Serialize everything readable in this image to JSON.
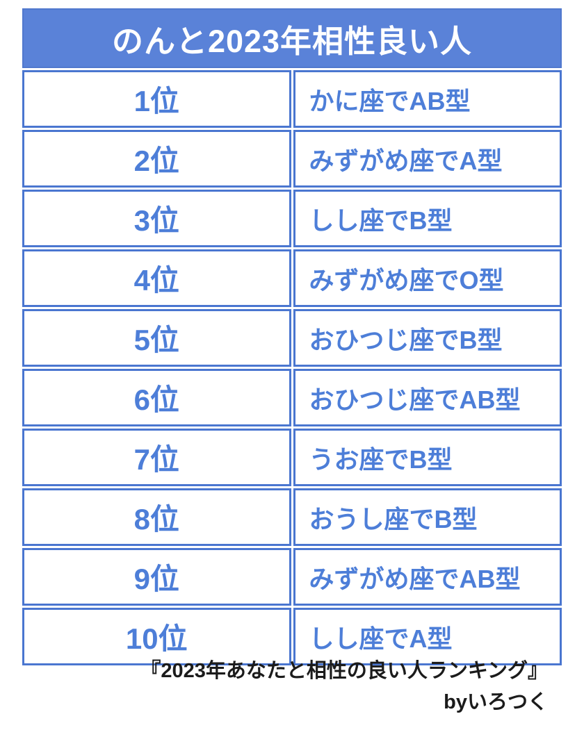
{
  "colors": {
    "header_bg": "#5a82d8",
    "cell_border": "#4a76d0",
    "text_blue": "#4d7ed8",
    "header_text": "#ffffff",
    "footer_text": "#1b1b1b",
    "page_bg": "#ffffff"
  },
  "header": {
    "title": "のんと2023年相性良い人"
  },
  "ranking": {
    "rows": [
      {
        "rank": "1位",
        "result": "かに座でAB型"
      },
      {
        "rank": "2位",
        "result": "みずがめ座でA型"
      },
      {
        "rank": "3位",
        "result": "しし座でB型"
      },
      {
        "rank": "4位",
        "result": "みずがめ座でO型"
      },
      {
        "rank": "5位",
        "result": "おひつじ座でB型"
      },
      {
        "rank": "6位",
        "result": "おひつじ座でAB型"
      },
      {
        "rank": "7位",
        "result": "うお座でB型"
      },
      {
        "rank": "8位",
        "result": "おうし座でB型"
      },
      {
        "rank": "9位",
        "result": "みずがめ座でAB型"
      },
      {
        "rank": "10位",
        "result": "しし座でA型"
      }
    ]
  },
  "footer": {
    "source_title": "『2023年あなたと相性の良い人ランキング』",
    "credit": "byいろつく"
  },
  "chart_data": {
    "type": "table",
    "title": "のんと2023年相性良い人",
    "rows": [
      [
        "1位",
        "かに座でAB型"
      ],
      [
        "2位",
        "みずがめ座でA型"
      ],
      [
        "3位",
        "しし座でB型"
      ],
      [
        "4位",
        "みずがめ座でO型"
      ],
      [
        "5位",
        "おひつじ座でB型"
      ],
      [
        "6位",
        "おひつじ座でAB型"
      ],
      [
        "7位",
        "うお座でB型"
      ],
      [
        "8位",
        "おうし座でB型"
      ],
      [
        "9位",
        "みずがめ座でAB型"
      ],
      [
        "10位",
        "しし座でA型"
      ]
    ],
    "caption": "『2023年あなたと相性の良い人ランキング』 byいろつく"
  }
}
